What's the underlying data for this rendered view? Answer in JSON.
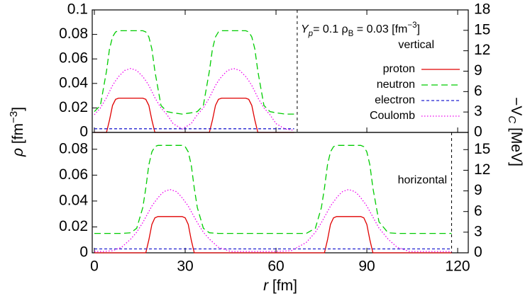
{
  "chart_data": [
    {
      "type": "line",
      "xlim": [
        -0.7,
        123.5
      ],
      "ylim": [
        0,
        0.1
      ],
      "yticks": [
        0,
        0.02,
        0.04,
        0.06,
        0.08,
        0.1
      ],
      "y2lim": [
        0,
        18
      ],
      "y2ticks": [
        0,
        3,
        6,
        9,
        12,
        15,
        18
      ],
      "ylabel": [
        "ρ",
        " [fm",
        "−3",
        "]"
      ],
      "y2label": [
        "−V",
        "C",
        " [MeV]"
      ],
      "annotation": [
        "Y",
        "p",
        "= 0.1  ρ",
        "B",
        " = 0.03 [fm",
        "−3",
        "]"
      ],
      "panel_label": "vertical",
      "boundary": 67,
      "x": [
        0,
        2,
        4,
        5,
        6,
        7,
        8,
        10,
        12,
        14,
        16,
        17,
        18,
        19,
        20,
        22,
        24,
        26,
        29,
        32,
        34,
        36,
        38,
        39,
        40,
        41,
        42,
        44,
        46,
        48,
        50,
        51,
        52,
        53,
        54,
        56,
        58,
        60,
        63,
        66
      ],
      "series": [
        {
          "name": "proton",
          "color": "#e00000",
          "style": "solid",
          "values": [
            0,
            0,
            0,
            0.01,
            0.022,
            0.027,
            0.028,
            0.028,
            0.028,
            0.028,
            0.028,
            0.027,
            0.022,
            0.01,
            0,
            0,
            0,
            0,
            0,
            0,
            0,
            0,
            0,
            0.01,
            0.022,
            0.027,
            0.028,
            0.028,
            0.028,
            0.028,
            0.028,
            0.027,
            0.022,
            0.01,
            0,
            0,
            0,
            0,
            0,
            0
          ]
        },
        {
          "name": "neutron",
          "color": "#00cc00",
          "style": "dashed",
          "values": [
            0.017,
            0.022,
            0.05,
            0.068,
            0.078,
            0.082,
            0.083,
            0.083,
            0.083,
            0.083,
            0.083,
            0.082,
            0.078,
            0.068,
            0.05,
            0.022,
            0.017,
            0.016,
            0.015,
            0.016,
            0.017,
            0.022,
            0.05,
            0.068,
            0.078,
            0.082,
            0.083,
            0.083,
            0.083,
            0.083,
            0.083,
            0.082,
            0.078,
            0.068,
            0.05,
            0.022,
            0.017,
            0.016,
            0.015,
            0.015
          ]
        },
        {
          "name": "electron",
          "color": "#2020d0",
          "style": "short-dashed",
          "values": [
            0.003,
            0.003,
            0.003,
            0.003,
            0.003,
            0.003,
            0.003,
            0.003,
            0.003,
            0.003,
            0.003,
            0.003,
            0.003,
            0.003,
            0.003,
            0.003,
            0.003,
            0.003,
            0.003,
            0.003,
            0.003,
            0.003,
            0.003,
            0.003,
            0.003,
            0.003,
            0.003,
            0.003,
            0.003,
            0.003,
            0.003,
            0.003,
            0.003,
            0.003,
            0.003,
            0.003,
            0.003,
            0.003,
            0.003,
            0.003
          ]
        },
        {
          "name": "Coulomb",
          "color": "#ee00ee",
          "style": "dotted",
          "axis": "y2",
          "values": [
            2.6,
            3.6,
            5.1,
            6.0,
            6.9,
            7.6,
            8.2,
            9.1,
            9.4,
            9.1,
            8.2,
            7.6,
            6.9,
            6.0,
            5.1,
            3.6,
            2.6,
            1.3,
            0.5,
            1.3,
            2.6,
            3.6,
            5.1,
            6.0,
            6.9,
            7.6,
            8.2,
            9.1,
            9.4,
            9.1,
            8.2,
            7.6,
            6.9,
            6.0,
            5.1,
            3.6,
            2.6,
            1.3,
            0.5,
            0.3
          ]
        }
      ]
    },
    {
      "type": "line",
      "xlim": [
        -0.7,
        123.5
      ],
      "xticks": [
        0,
        30,
        60,
        90,
        120
      ],
      "xlabel": [
        "r",
        " [fm]"
      ],
      "ylim": [
        0,
        0.093
      ],
      "yticks": [
        0,
        0.02,
        0.04,
        0.06,
        0.08
      ],
      "y2lim": [
        0,
        17.5
      ],
      "y2ticks": [
        0,
        3,
        6,
        9,
        12,
        15
      ],
      "panel_label": "horizontal",
      "boundary": 118,
      "x": [
        0,
        3,
        6,
        9,
        12,
        14,
        16,
        17,
        18,
        19,
        20,
        21,
        22,
        23,
        25,
        27,
        28,
        29,
        30,
        31,
        32,
        33,
        34,
        36,
        38,
        41,
        45,
        50,
        55,
        60,
        65,
        70,
        73,
        75,
        76,
        77,
        78,
        79,
        80,
        81,
        82,
        84,
        86,
        87,
        88,
        89,
        90,
        91,
        92,
        94,
        97,
        100,
        104,
        108,
        112,
        116,
        118
      ],
      "series": [
        {
          "color": "#e00000",
          "style": "solid",
          "values": [
            0,
            0,
            0,
            0,
            0,
            0,
            0,
            0,
            0.01,
            0.022,
            0.027,
            0.028,
            0.028,
            0.028,
            0.028,
            0.028,
            0.028,
            0.028,
            0.027,
            0.022,
            0.01,
            0,
            0,
            0,
            0,
            0,
            0,
            0,
            0,
            0,
            0,
            0,
            0,
            0,
            0,
            0.01,
            0.022,
            0.027,
            0.028,
            0.028,
            0.028,
            0.028,
            0.028,
            0.028,
            0.028,
            0.027,
            0.022,
            0.01,
            0,
            0,
            0,
            0,
            0,
            0,
            0,
            0,
            0
          ]
        },
        {
          "color": "#00cc00",
          "style": "dashed",
          "values": [
            0.015,
            0.015,
            0.015,
            0.015,
            0.0155,
            0.019,
            0.035,
            0.05,
            0.068,
            0.078,
            0.082,
            0.083,
            0.083,
            0.083,
            0.083,
            0.083,
            0.083,
            0.083,
            0.082,
            0.078,
            0.068,
            0.05,
            0.035,
            0.019,
            0.0155,
            0.015,
            0.015,
            0.015,
            0.015,
            0.015,
            0.015,
            0.015,
            0.019,
            0.035,
            0.05,
            0.068,
            0.078,
            0.082,
            0.083,
            0.083,
            0.083,
            0.083,
            0.083,
            0.083,
            0.083,
            0.082,
            0.078,
            0.068,
            0.05,
            0.024,
            0.0155,
            0.015,
            0.015,
            0.015,
            0.015,
            0.015,
            0.015
          ]
        },
        {
          "color": "#2020d0",
          "style": "short-dashed",
          "values": [
            0.003,
            0.003,
            0.003,
            0.003,
            0.003,
            0.003,
            0.003,
            0.003,
            0.003,
            0.003,
            0.003,
            0.003,
            0.003,
            0.003,
            0.003,
            0.003,
            0.003,
            0.003,
            0.003,
            0.003,
            0.003,
            0.003,
            0.003,
            0.003,
            0.003,
            0.003,
            0.003,
            0.003,
            0.003,
            0.003,
            0.003,
            0.003,
            0.003,
            0.003,
            0.003,
            0.003,
            0.003,
            0.003,
            0.003,
            0.003,
            0.003,
            0.003,
            0.003,
            0.003,
            0.003,
            0.003,
            0.003,
            0.003,
            0.003,
            0.003,
            0.003,
            0.003,
            0.003,
            0.003,
            0.003,
            0.003,
            0.003
          ]
        },
        {
          "color": "#ee00ee",
          "style": "dotted",
          "axis": "y2",
          "values": [
            0.2,
            0.2,
            0.3,
            0.8,
            2.0,
            3.0,
            4.4,
            5.2,
            6.0,
            6.8,
            7.4,
            8.0,
            8.5,
            8.9,
            9.2,
            8.9,
            8.5,
            8.0,
            7.4,
            6.8,
            6.0,
            5.2,
            4.4,
            3.0,
            2.0,
            0.8,
            0.2,
            0.2,
            0.2,
            0.2,
            0.3,
            1.5,
            3.0,
            4.4,
            5.2,
            6.0,
            6.8,
            7.4,
            8.0,
            8.5,
            8.9,
            9.2,
            8.9,
            8.5,
            8.0,
            7.4,
            6.8,
            6.0,
            5.2,
            3.6,
            2.0,
            0.8,
            0.2,
            0.2,
            0.2,
            0.2,
            0.2
          ]
        }
      ]
    }
  ]
}
